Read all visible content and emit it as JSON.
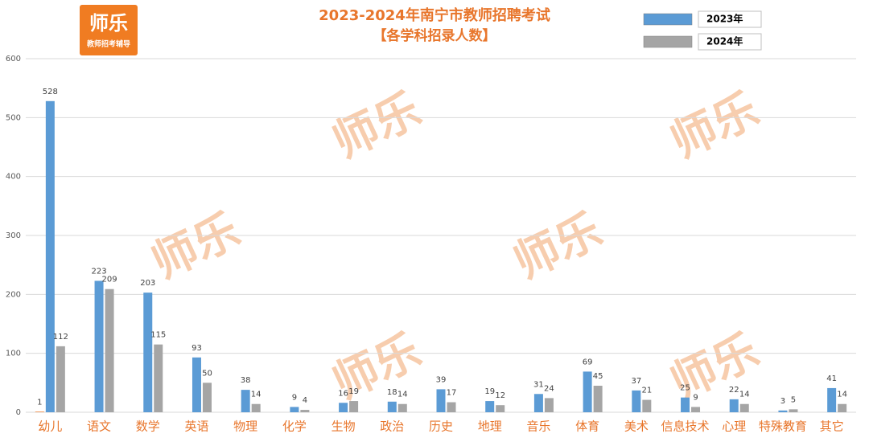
{
  "logo": {
    "title": "师乐",
    "subtitle": "教师招考辅导"
  },
  "watermark": "师乐",
  "chart_data": {
    "type": "bar",
    "title": "2023-2024年南宁市教师招聘考试",
    "subtitle": "【各学科招录人数】",
    "categories": [
      "幼儿",
      "语文",
      "数学",
      "英语",
      "物理",
      "化学",
      "生物",
      "政治",
      "历史",
      "地理",
      "音乐",
      "体育",
      "美术",
      "信息技术",
      "心理",
      "特殊教育",
      "其它"
    ],
    "series": [
      {
        "color": "#ed7d31",
        "values": [
          1,
          null,
          null,
          null,
          null,
          null,
          null,
          null,
          null,
          null,
          null,
          null,
          null,
          null,
          null,
          null,
          null
        ]
      },
      {
        "name": "2023年",
        "color": "#5b9bd5",
        "values": [
          528,
          223,
          203,
          93,
          38,
          9,
          16,
          18,
          39,
          19,
          31,
          69,
          37,
          25,
          22,
          3,
          41
        ]
      },
      {
        "name": "2024年",
        "color": "#a5a5a5",
        "values": [
          112,
          209,
          115,
          50,
          14,
          4,
          19,
          14,
          17,
          12,
          24,
          45,
          21,
          9,
          14,
          5,
          14
        ]
      }
    ],
    "ylim": [
      0,
      600
    ],
    "yticks": [
      0,
      100,
      200,
      300,
      400,
      500,
      600
    ],
    "grid": true,
    "legend": "top-right"
  }
}
